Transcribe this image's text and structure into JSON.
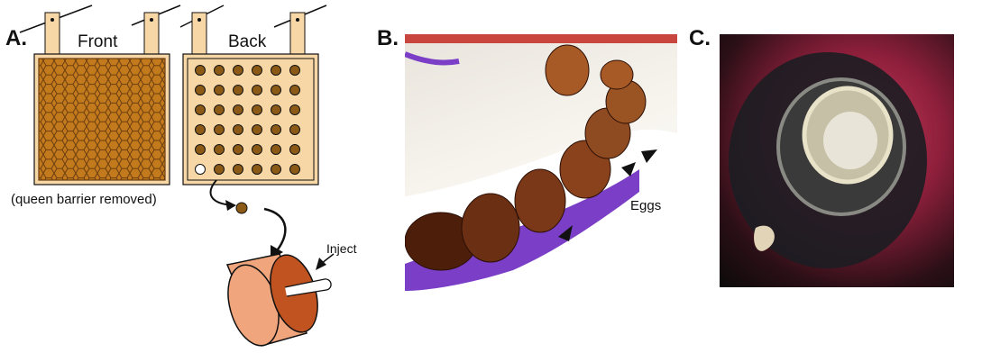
{
  "panels": {
    "a": {
      "letter": "A.",
      "front_label": "Front",
      "back_label": "Back",
      "barrier_note": "(queen barrier removed)",
      "inject_label": "Inject"
    },
    "b": {
      "letter": "B.",
      "eggs_label": "Eggs"
    },
    "c": {
      "letter": "C."
    }
  },
  "colors": {
    "frame_outer": "#f7d7a6",
    "comb_fill": "#c27a1c",
    "cell_dark": "#6b3d10",
    "cup_fill": "#f0a57d",
    "cup_inner": "#c0531f",
    "purple_wax": "#7b3fc7"
  },
  "icons": {
    "arrow": "curved-arrow-icon",
    "arrowhead": "arrowhead-icon"
  }
}
